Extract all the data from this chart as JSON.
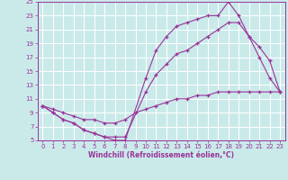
{
  "xlabel": "Windchill (Refroidissement éolien,°C)",
  "xlim": [
    -0.5,
    23.5
  ],
  "ylim": [
    5,
    25
  ],
  "yticks": [
    5,
    7,
    9,
    11,
    13,
    15,
    17,
    19,
    21,
    23,
    25
  ],
  "xticks": [
    0,
    1,
    2,
    3,
    4,
    5,
    6,
    7,
    8,
    9,
    10,
    11,
    12,
    13,
    14,
    15,
    16,
    17,
    18,
    19,
    20,
    21,
    22,
    23
  ],
  "bg_color": "#caeaea",
  "line_color": "#993399",
  "grid_color": "#ffffff",
  "line1_x": [
    0,
    1,
    2,
    3,
    4,
    5,
    6,
    7,
    8,
    10,
    11,
    12,
    13,
    14,
    15,
    16,
    17,
    18,
    19,
    20,
    21,
    22,
    23
  ],
  "line1_y": [
    10,
    9,
    8,
    7.5,
    6.5,
    6,
    5.5,
    5,
    5,
    14,
    18,
    20,
    21.5,
    22,
    22.5,
    23,
    23,
    25,
    23,
    20,
    17,
    14,
    12
  ],
  "line2_x": [
    0,
    1,
    2,
    3,
    4,
    5,
    6,
    7,
    8,
    10,
    11,
    12,
    13,
    14,
    15,
    16,
    17,
    18,
    19,
    20,
    21,
    22,
    23
  ],
  "line2_y": [
    10,
    9,
    8,
    7.5,
    6.5,
    6,
    5.5,
    5.5,
    5.5,
    12,
    14.5,
    16,
    17.5,
    18,
    19,
    20,
    21,
    22,
    22,
    20,
    18.5,
    16.5,
    12
  ],
  "line3_x": [
    0,
    1,
    2,
    3,
    4,
    5,
    6,
    7,
    8,
    9,
    10,
    11,
    12,
    13,
    14,
    15,
    16,
    17,
    18,
    19,
    20,
    21,
    22,
    23
  ],
  "line3_y": [
    10,
    9.5,
    9,
    8.5,
    8,
    8,
    7.5,
    7.5,
    8,
    9,
    9.5,
    10,
    10.5,
    11,
    11,
    11.5,
    11.5,
    12,
    12,
    12,
    12,
    12,
    12,
    12
  ],
  "marker_size": 3,
  "line_width": 0.8,
  "tick_fontsize": 5,
  "xlabel_fontsize": 5.5
}
